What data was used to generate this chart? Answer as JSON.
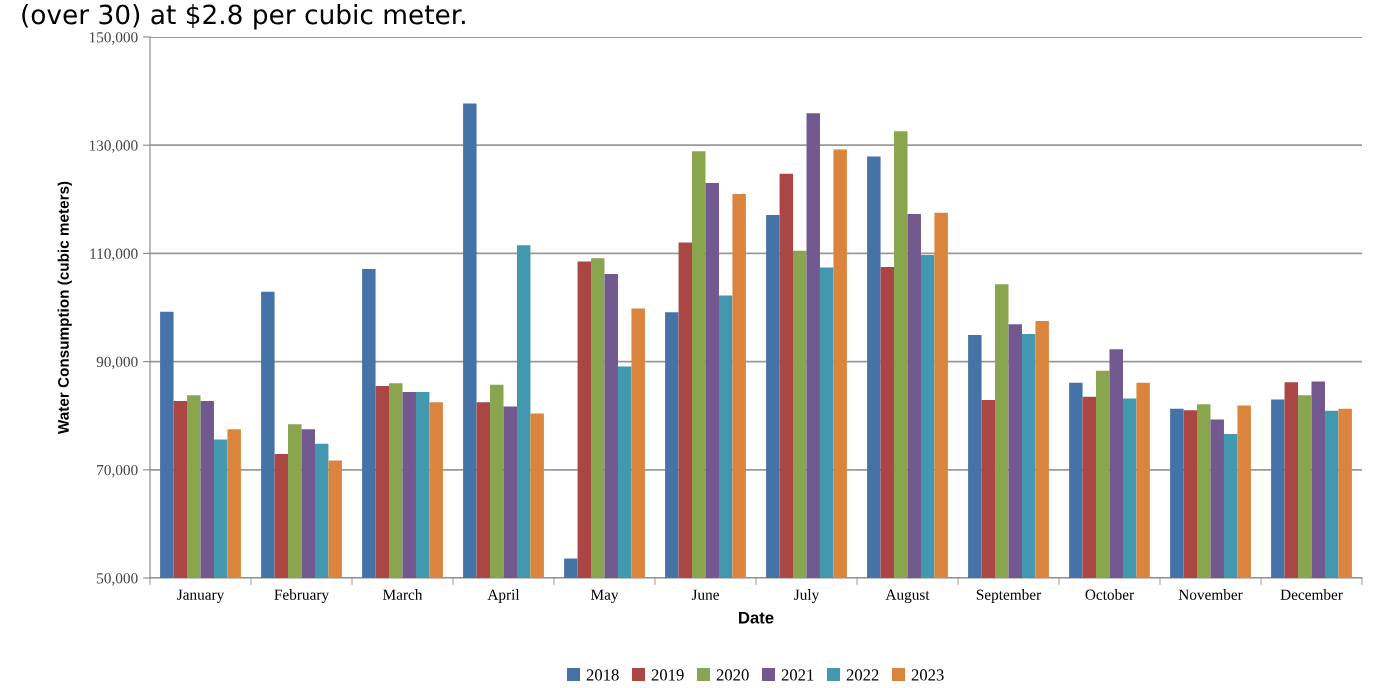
{
  "chart_data": {
    "type": "bar",
    "annotations": [
      "(over 30) at $2.8 per cubic meter."
    ],
    "xlabel": "Date",
    "ylabel": "Water Consumption (cubic meters)",
    "categories": [
      "January",
      "February",
      "March",
      "April",
      "May",
      "June",
      "July",
      "August",
      "September",
      "October",
      "November",
      "December"
    ],
    "series": [
      {
        "name": "2018",
        "color": "#4572a7",
        "values": [
          99200,
          102900,
          107100,
          137700,
          53600,
          99100,
          117100,
          127900,
          94900,
          86100,
          81300,
          83000
        ]
      },
      {
        "name": "2019",
        "color": "#aa4643",
        "values": [
          82700,
          72900,
          85500,
          82500,
          108500,
          112000,
          124700,
          107500,
          82900,
          83500,
          81000,
          86200
        ]
      },
      {
        "name": "2020",
        "color": "#89a54e",
        "values": [
          83800,
          78400,
          86000,
          85700,
          109100,
          128900,
          110500,
          132600,
          104300,
          88300,
          82100,
          83800
        ]
      },
      {
        "name": "2021",
        "color": "#71588f",
        "values": [
          82700,
          77500,
          84400,
          81700,
          106200,
          123000,
          135900,
          117300,
          96900,
          92300,
          79300,
          86300
        ]
      },
      {
        "name": "2022",
        "color": "#4198af",
        "values": [
          75600,
          74800,
          84400,
          111500,
          89100,
          102200,
          107400,
          109700,
          95100,
          83200,
          76600,
          80900
        ]
      },
      {
        "name": "2023",
        "color": "#db843d",
        "values": [
          77500,
          71700,
          82500,
          80400,
          99800,
          121000,
          129200,
          117500,
          97500,
          86100,
          81900,
          81300
        ]
      }
    ],
    "ylim": [
      50000,
      150000
    ],
    "yticks": [
      {
        "value": 50000,
        "label": "50,000"
      },
      {
        "value": 70000,
        "label": "70,000"
      },
      {
        "value": 90000,
        "label": "90,000"
      },
      {
        "value": 110000,
        "label": "110,000"
      },
      {
        "value": 130000,
        "label": "130,000"
      },
      {
        "value": 150000,
        "label": "150,000"
      }
    ],
    "grid": "y",
    "legend": "bottom"
  }
}
